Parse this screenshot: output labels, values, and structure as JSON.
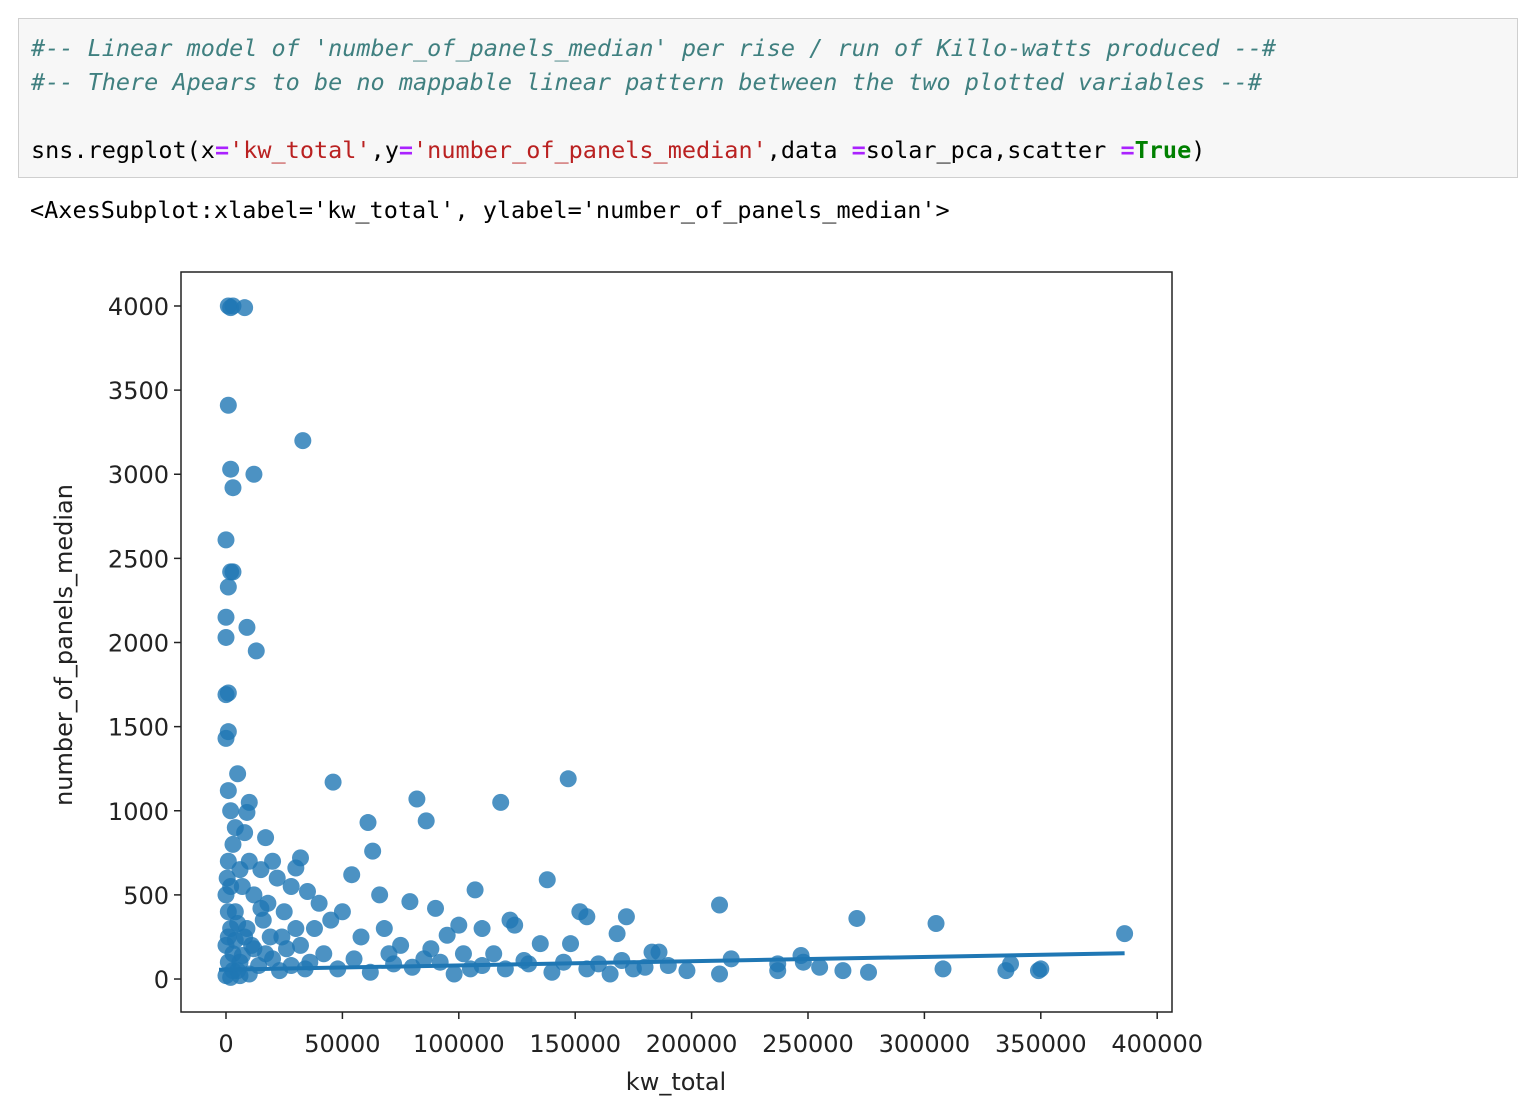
{
  "code": {
    "comments": [
      "#-- Linear model of 'number_of_panels_median' per rise / run of Killo-watts produced --#",
      "#-- There Apears to be no mappable linear pattern between the two plotted variables --#"
    ],
    "tokens": [
      "sns.regplot(x",
      "=",
      "'kw_total'",
      ",y",
      "=",
      "'number_of_panels_median'",
      ",data ",
      "=",
      "solar_pca,scatter ",
      "=",
      "True",
      ")"
    ]
  },
  "output": "<AxesSubplot:xlabel='kw_total', ylabel='number_of_panels_median'>",
  "chart_data": {
    "type": "scatter",
    "xlabel": "kw_total",
    "ylabel": "number_of_panels_median",
    "color": "#1f77b4",
    "xlim": [
      -19330,
      406360
    ],
    "ylim": [
      -196,
      4202
    ],
    "xticks": [
      0,
      50000,
      100000,
      150000,
      200000,
      250000,
      300000,
      350000,
      400000
    ],
    "yticks": [
      0,
      500,
      1000,
      1500,
      2000,
      2500,
      3000,
      3500,
      4000
    ],
    "x": [
      1000,
      2000,
      3000,
      8000,
      1000,
      33000,
      2000,
      12000,
      3000,
      0,
      2000,
      3000,
      1000,
      0,
      9000,
      0,
      13000,
      1000,
      0,
      1000,
      0,
      5000,
      46000,
      147000,
      82000,
      118000,
      10000,
      1000,
      9000,
      61000,
      86000,
      17000,
      63000,
      32000,
      20000,
      30000,
      54000,
      138000,
      66000,
      107000,
      79000,
      212000,
      152000,
      90000,
      155000,
      172000,
      271000,
      305000,
      386000,
      122000,
      124000,
      168000,
      100000,
      110000,
      95000,
      135000,
      148000,
      183000,
      186000,
      217000,
      247000,
      237000,
      248000,
      255000,
      265000,
      276000,
      237000,
      308000,
      335000,
      337000,
      349000,
      350000,
      212000,
      198000,
      190000,
      175000,
      165000,
      160000,
      140000,
      128000,
      115000,
      105000,
      98000,
      88000,
      75000,
      72000,
      68000,
      58000,
      50000,
      45000,
      40000,
      38000,
      35000,
      28000,
      25000,
      22000,
      18000,
      15000,
      12000,
      10000,
      8000,
      6000,
      4000,
      3000,
      2000,
      1000,
      500,
      0,
      1000,
      2000,
      0,
      3000,
      1000,
      5000,
      0,
      2000,
      8000,
      12000,
      16000,
      20000,
      24000,
      28000,
      32000,
      36000,
      42000,
      48000,
      55000,
      62000,
      70000,
      80000,
      85000,
      92000,
      102000,
      110000,
      120000,
      130000,
      145000,
      155000,
      170000,
      180000,
      6000,
      4000,
      7000,
      9000,
      11000,
      14000,
      17000,
      19000,
      23000,
      26000,
      30000,
      34000,
      3000,
      6000,
      1000,
      4000,
      10000,
      15000,
      5000,
      2000,
      7000
    ],
    "y": [
      4000,
      3990,
      4000,
      3990,
      3410,
      3200,
      3030,
      3000,
      2920,
      2610,
      2420,
      2420,
      2330,
      2150,
      2090,
      2030,
      1950,
      1700,
      1690,
      1470,
      1430,
      1220,
      1170,
      1190,
      1070,
      1050,
      1050,
      1120,
      990,
      930,
      940,
      840,
      760,
      720,
      700,
      660,
      620,
      590,
      500,
      530,
      460,
      440,
      400,
      420,
      370,
      370,
      360,
      330,
      270,
      350,
      320,
      270,
      320,
      300,
      260,
      210,
      210,
      160,
      160,
      120,
      140,
      90,
      100,
      70,
      50,
      40,
      50,
      60,
      50,
      90,
      50,
      60,
      30,
      50,
      80,
      60,
      30,
      90,
      40,
      110,
      150,
      60,
      30,
      180,
      200,
      90,
      300,
      250,
      400,
      350,
      450,
      300,
      520,
      550,
      400,
      600,
      450,
      650,
      500,
      700,
      870,
      650,
      900,
      800,
      1000,
      700,
      600,
      500,
      400,
      300,
      200,
      150,
      100,
      50,
      20,
      10,
      250,
      180,
      350,
      120,
      250,
      80,
      200,
      100,
      150,
      60,
      120,
      40,
      150,
      70,
      120,
      100,
      150,
      80,
      60,
      90,
      100,
      60,
      110,
      70,
      100,
      400,
      550,
      300,
      200,
      80,
      150,
      250,
      50,
      180,
      300,
      60,
      50,
      20,
      250,
      230,
      30,
      420,
      330,
      550,
      140
    ],
    "trend_x": [
      -3000,
      386000
    ],
    "trend_y": [
      55,
      153
    ]
  }
}
